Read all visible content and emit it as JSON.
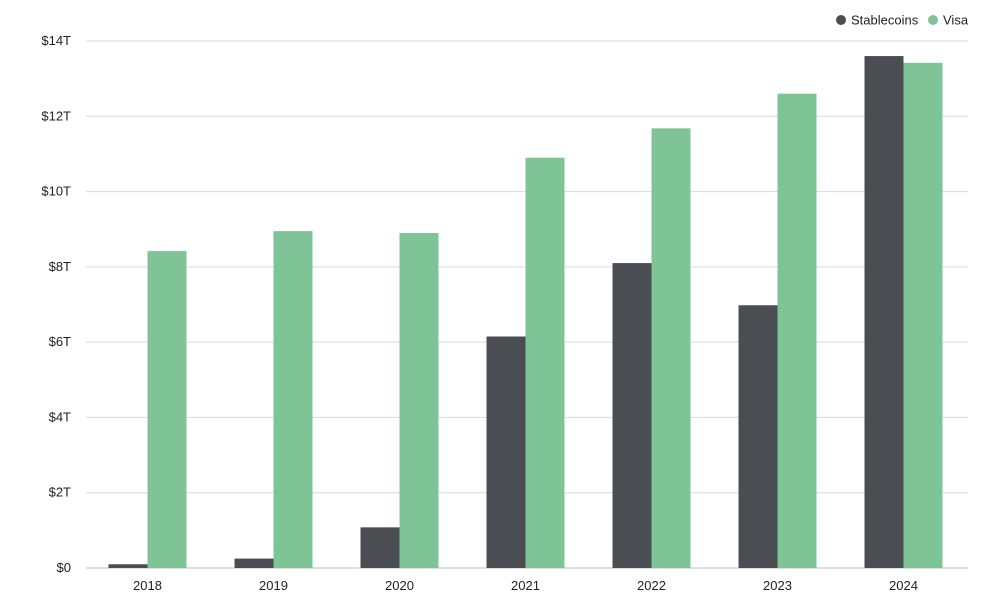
{
  "chart_data": {
    "type": "bar",
    "title": "",
    "xlabel": "",
    "ylabel": "",
    "categories": [
      "2018",
      "2019",
      "2020",
      "2021",
      "2022",
      "2023",
      "2024"
    ],
    "series": [
      {
        "name": "Stablecoins",
        "color": "#4a4e52",
        "values": [
          0.1,
          0.25,
          1.08,
          6.15,
          8.1,
          6.98,
          13.6
        ]
      },
      {
        "name": "Visa",
        "color": "#7fc496",
        "values": [
          8.42,
          8.95,
          8.9,
          10.9,
          11.68,
          12.6,
          13.42
        ]
      }
    ],
    "ylim": [
      0,
      14
    ],
    "y_ticks": [
      0,
      2,
      4,
      6,
      8,
      10,
      12,
      14
    ],
    "y_tick_labels": [
      "$0",
      "$2T",
      "$4T",
      "$6T",
      "$8T",
      "$10T",
      "$12T",
      "$14T"
    ],
    "grid": true,
    "legend_position": "top-right"
  }
}
